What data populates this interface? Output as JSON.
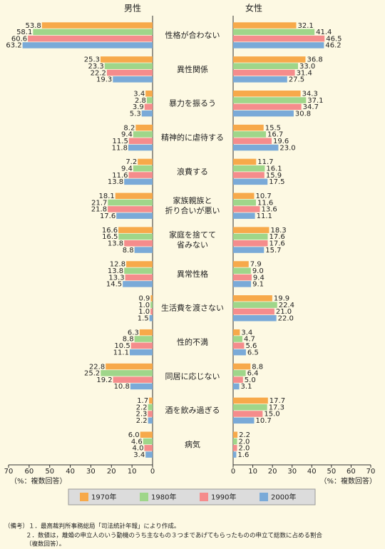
{
  "chart_data": {
    "type": "butterfly",
    "panel_titles": [
      "男性",
      "女性"
    ],
    "categories": [
      "性格が合わない",
      "異性関係",
      "暴力を振るう",
      "精神的に虐待する",
      "浪費する",
      [
        "家族親族と",
        "折り合いが悪い"
      ],
      [
        "家庭を捨てて",
        "省みない"
      ],
      "異常性格",
      "生活費を渡さない",
      "性的不満",
      "同居に応じない",
      "酒を飲み過ぎる",
      "病気"
    ],
    "xlim": [
      0,
      70
    ],
    "xticks": [
      0,
      10,
      20,
      30,
      40,
      50,
      60,
      70
    ],
    "axis_note": "（%：複数回答）",
    "series": [
      {
        "name": "1970年",
        "color": "#f7a94a",
        "male": [
          53.8,
          25.3,
          3.4,
          8.2,
          7.2,
          18.1,
          16.6,
          12.8,
          0.9,
          6.3,
          22.8,
          1.7,
          6.0
        ],
        "male_labels": [
          "53.8",
          "25.3",
          "3.4",
          "8.2",
          "7.2",
          "18.1",
          "16.6",
          "12.8",
          "0.9",
          "6.3",
          "22.8",
          "1.7",
          "6.0"
        ],
        "female": [
          32.1,
          36.8,
          34.3,
          15.5,
          11.7,
          10.7,
          18.3,
          7.9,
          19.9,
          3.4,
          8.8,
          17.7,
          2.2
        ],
        "female_labels": [
          "32.1",
          "36.8",
          "34.3",
          "15.5",
          "11.7",
          "10.7",
          "18.3",
          "7.9",
          "19.9",
          "3.4",
          "8.8",
          "17.7",
          "2.2"
        ]
      },
      {
        "name": "1980年",
        "color": "#9fd68a",
        "male": [
          58.1,
          23.3,
          2.8,
          9.4,
          9.4,
          21.7,
          16.5,
          13.8,
          1.0,
          8.8,
          25.2,
          2.2,
          4.6
        ],
        "male_labels": [
          "58.1",
          "23.3",
          "2.8",
          "9.4",
          "9.4",
          "21.7",
          "16.5",
          "13.8",
          "1.0",
          "8.8",
          "25.2",
          "2.2",
          "4.6"
        ],
        "female": [
          41.4,
          33.0,
          37.1,
          16.7,
          16.1,
          11.6,
          17.6,
          9.0,
          22.4,
          4.7,
          6.4,
          17.3,
          2.0
        ],
        "female_labels": [
          "41.4",
          "33.0",
          "37.1",
          "16.7",
          "16.1",
          "11.6",
          "17.6",
          "9.0",
          "22.4",
          "4.7",
          "6.4",
          "17.3",
          "2.0"
        ]
      },
      {
        "name": "1990年",
        "color": "#f58c8c",
        "male": [
          60.6,
          22.2,
          3.9,
          11.5,
          11.6,
          21.8,
          13.8,
          13.3,
          1.0,
          10.5,
          19.2,
          2.3,
          4.0
        ],
        "male_labels": [
          "60.6",
          "22.2",
          "3.9",
          "11.5",
          "11.6",
          "21.8",
          "13.8",
          "13.3",
          "1.0",
          "10.5",
          "19.2",
          "2.3",
          "4.0"
        ],
        "female": [
          46.5,
          31.4,
          34.7,
          19.6,
          15.9,
          13.6,
          17.6,
          9.4,
          21.0,
          5.6,
          5.0,
          15.0,
          2.0
        ],
        "female_labels": [
          "46.5",
          "31.4",
          "34.7",
          "19.6",
          "15.9",
          "13.6",
          "17.6",
          "9.4",
          "21.0",
          "5.6",
          "5.0",
          "15.0",
          "2.0"
        ]
      },
      {
        "name": "2000年",
        "color": "#7aaad8",
        "male": [
          63.2,
          19.3,
          5.3,
          11.8,
          13.8,
          17.6,
          8.8,
          14.5,
          1.5,
          11.1,
          10.8,
          2.2,
          3.4
        ],
        "male_labels": [
          "63.2",
          "19.3",
          "5.3",
          "11.8",
          "13.8",
          "17.6",
          "8.8",
          "14.5",
          "1.5",
          "11.1",
          "10.8",
          "2.2",
          "3.4"
        ],
        "female": [
          46.2,
          27.5,
          30.8,
          23.0,
          17.5,
          11.1,
          15.7,
          9.1,
          22.0,
          6.5,
          3.1,
          10.7,
          1.6
        ],
        "female_labels": [
          "46.2",
          "27.5",
          "30.8",
          "23.0",
          "17.5",
          "11.1",
          "15.7",
          "9.1",
          "22.0",
          "6.5",
          "3.1",
          "10.7",
          "1.6"
        ]
      }
    ]
  },
  "notes": [
    "（備考）１．最高裁判所事務総局「司法統計年報」により作成。",
    "２．数値は，離婚の申立人のいう動機のうち主なもの３つまであげてもらったものの申立て総数に占める割合",
    "（複数回答）。"
  ]
}
